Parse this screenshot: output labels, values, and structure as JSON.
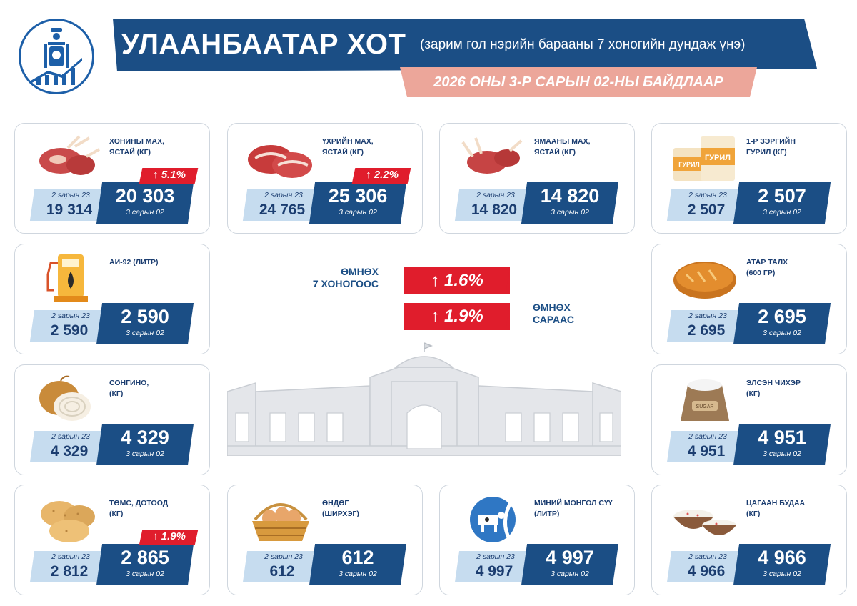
{
  "header": {
    "title": "УЛААНБААТАР ХОТ",
    "subtitle": "(зарим гол нэрийн барааны 7 хоногийн дундаж үнэ)",
    "date": "2026 ОНЫ 3-Р САРЫН 02-НЫ БАЙДЛААР"
  },
  "summary": {
    "week_label": "ӨМНӨХ\n7 ХОНОГООС",
    "week_change": "↑  1.6%",
    "month_label": "ӨМНӨХ\nСАРААС",
    "month_change": "↑  1.9%"
  },
  "colors": {
    "navy": "#1b4e85",
    "light_blue": "#c6dcef",
    "red": "#e01d2c",
    "salmon": "#eca69a"
  },
  "products": [
    {
      "name": "ХОНИНЫ МАХ,\nЯСТАЙ (КГ)",
      "icon": "mutton-ribs-icon",
      "prev_label": "2 sарын 23",
      "prev": "19 314",
      "cur": "20 303",
      "cur_label": "3 сарын 02",
      "change": "↑  5.1%"
    },
    {
      "name": "ҮХРИЙН МАХ,\nЯСТАЙ (КГ)",
      "icon": "beef-steak-icon",
      "prev_label": "2 sарын 23",
      "prev": "24 765",
      "cur": "25 306",
      "cur_label": "3 сарын 02",
      "change": "↑  2.2%"
    },
    {
      "name": "ЯМААНЫ МАХ,\nЯСТАЙ (КГ)",
      "icon": "goat-meat-icon",
      "prev_label": "2 sарын 23",
      "prev": "14 820",
      "cur": "14 820",
      "cur_label": "3 сарын 02",
      "change": ""
    },
    {
      "name": "1-Р ЗЭРГИЙН\nГУРИЛ (КГ)",
      "icon": "flour-bag-icon",
      "prev_label": "2 sарын 23",
      "prev": "2 507",
      "cur": "2 507",
      "cur_label": "3 сарын 02",
      "change": ""
    },
    {
      "name": "АИ-92 (ЛИТР)",
      "icon": "fuel-pump-icon",
      "prev_label": "2 sарын 23",
      "prev": "2 590",
      "cur": "2 590",
      "cur_label": "3 сарын 02",
      "change": ""
    },
    {
      "name": "АТАР ТАЛХ\n (600 ГР)",
      "icon": "bread-icon",
      "prev_label": "2 sарын 23",
      "prev": "2 695",
      "cur": "2 695",
      "cur_label": "3 сарын 02",
      "change": ""
    },
    {
      "name": "СОНГИНО,\n(КГ)",
      "icon": "onion-icon",
      "prev_label": "2 sарын 23",
      "prev": "4 329",
      "cur": "4 329",
      "cur_label": "3 сарын 02",
      "change": ""
    },
    {
      "name": "ЭЛСЭН ЧИХЭР\n(КГ)",
      "icon": "sugar-sack-icon",
      "prev_label": "2 sарын 23",
      "prev": "4 951",
      "cur": "4 951",
      "cur_label": "3 сарын 02",
      "change": ""
    },
    {
      "name": "ТӨМС, ДОТООД\n(КГ)",
      "icon": "potato-icon",
      "prev_label": "2 sарын 23",
      "prev": "2 812",
      "cur": "2 865",
      "cur_label": "3 сарын 02",
      "change": "↑  1.9%"
    },
    {
      "name": "ӨНДӨГ\n(ШИРХЭГ)",
      "icon": "egg-basket-icon",
      "prev_label": "2 sарын 23",
      "prev": "612",
      "cur": "612",
      "cur_label": "3 сарын 02",
      "change": ""
    },
    {
      "name": "МИНИЙ МОНГОЛ СҮҮ\n(ЛИТР)",
      "icon": "milk-icon",
      "prev_label": "2 sарын 23",
      "prev": "4 997",
      "cur": "4 997",
      "cur_label": "3 сарын 02",
      "change": ""
    },
    {
      "name": "ЦАГААН БУДАА\n(КГ)",
      "icon": "rice-bowl-icon",
      "prev_label": "2 sарын 23",
      "prev": "4 966",
      "cur": "4 966",
      "cur_label": "3 сарын 02",
      "change": ""
    }
  ]
}
